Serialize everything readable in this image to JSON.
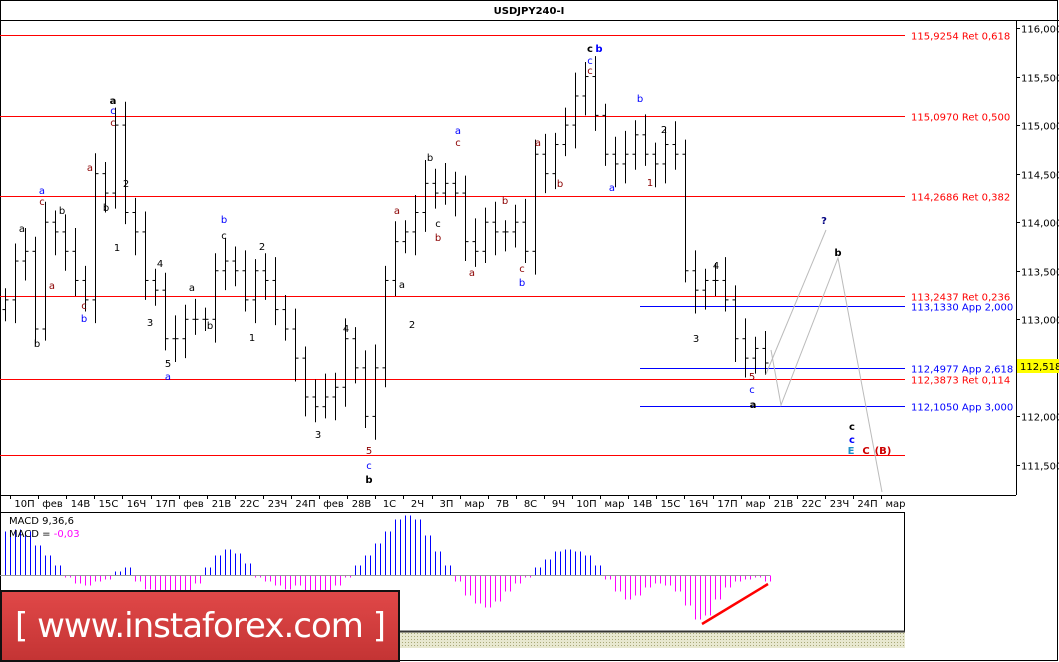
{
  "chart_data": {
    "type": "ohlc",
    "title": "USDJPY240-I",
    "ylim": [
      111.2,
      116.2
    ],
    "y_ticks": [
      "116,000",
      "115,500",
      "115,000",
      "114,500",
      "114,000",
      "113,500",
      "113,000",
      "112,000",
      "111,500"
    ],
    "current_price": "112,518",
    "x_labels": [
      "10П",
      "фев",
      "14В",
      "15С",
      "16Ч",
      "17П",
      "фев",
      "21В",
      "22С",
      "23Ч",
      "24П",
      "фев",
      "28В",
      "1С",
      "2Ч",
      "3П",
      "мар",
      "7В",
      "8С",
      "9Ч",
      "10П",
      "мар",
      "14В",
      "15С",
      "16Ч",
      "17П",
      "мар",
      "21В",
      "22С",
      "23Ч",
      "24П",
      "мар"
    ],
    "price_path": [
      113.2,
      113.6,
      113.7,
      112.9,
      114.0,
      113.9,
      113.7,
      113.4,
      113.2,
      114.5,
      114.3,
      115.0,
      114.1,
      113.9,
      113.4,
      113.3,
      112.8,
      112.8,
      113.0,
      113.0,
      113.0,
      113.5,
      113.6,
      113.5,
      113.2,
      113.5,
      113.4,
      113.1,
      112.9,
      112.6,
      112.2,
      112.1,
      112.2,
      112.3,
      112.8,
      112.5,
      112.0,
      112.5,
      113.4,
      113.8,
      113.9,
      114.1,
      114.4,
      114.3,
      114.4,
      114.3,
      113.8,
      113.7,
      114.0,
      113.9,
      113.9,
      114.0,
      113.7,
      114.7,
      114.5,
      114.8,
      115.0,
      115.3,
      115.5,
      115.1,
      114.7,
      114.6,
      114.7,
      114.9,
      114.7,
      114.6,
      114.8,
      114.7,
      113.5,
      113.3,
      113.4,
      113.4,
      113.2,
      112.8,
      112.6,
      112.7,
      112.55
    ],
    "fib_levels": [
      {
        "price": 115.9254,
        "label": "115,9254 Ret 0,618",
        "color": "#ff0000"
      },
      {
        "price": 115.097,
        "label": "115,0970 Ret 0,500",
        "color": "#ff0000"
      },
      {
        "price": 114.2686,
        "label": "114,2686 Ret 0,382",
        "color": "#ff0000"
      },
      {
        "price": 113.2437,
        "label": "113,2437 Ret 0,236",
        "color": "#ff0000"
      },
      {
        "price": 113.133,
        "label": "113,1330 App 2,000",
        "color": "#0000ff"
      },
      {
        "price": 112.4977,
        "label": "112,4977 App 2,618",
        "color": "#0000ff"
      },
      {
        "price": 112.3873,
        "label": "112,3873 Ret 0,114",
        "color": "#ff0000"
      },
      {
        "price": 112.105,
        "label": "112,1050 App 3,000",
        "color": "#0000ff"
      },
      {
        "price": 111.6,
        "label": "",
        "color": "#ff0000"
      }
    ],
    "wave_labels": [
      {
        "t": "a",
        "c": "#000",
        "b": 1
      },
      {
        "t": "c",
        "c": "#0000ff"
      },
      {
        "t": "c",
        "c": "#8b0000"
      },
      {
        "t": "a",
        "c": "#0000ff"
      },
      {
        "t": "c",
        "c": "#8b0000"
      },
      {
        "t": "b",
        "c": "#000"
      },
      {
        "t": "a",
        "c": "#000"
      },
      {
        "t": "a",
        "c": "#8b0000"
      },
      {
        "t": "c",
        "c": "#8b0000"
      },
      {
        "t": "b",
        "c": "#0000ff"
      },
      {
        "t": "b",
        "c": "#000"
      },
      {
        "t": "2",
        "c": "#000"
      },
      {
        "t": "1",
        "c": "#000"
      },
      {
        "t": "b",
        "c": "#000"
      },
      {
        "t": "a",
        "c": "#8b0000"
      },
      {
        "t": "b",
        "c": "#0000ff"
      },
      {
        "t": "c",
        "c": "#000"
      },
      {
        "t": "2",
        "c": "#000"
      },
      {
        "t": "1",
        "c": "#000"
      },
      {
        "t": "4",
        "c": "#000"
      },
      {
        "t": "3",
        "c": "#000"
      },
      {
        "t": "5",
        "c": "#000"
      },
      {
        "t": "a",
        "c": "#0000ff"
      },
      {
        "t": "a",
        "c": "#000"
      },
      {
        "t": "b",
        "c": "#000"
      },
      {
        "t": "4",
        "c": "#000"
      },
      {
        "t": "3",
        "c": "#000"
      },
      {
        "t": "5",
        "c": "#8b0000"
      },
      {
        "t": "c",
        "c": "#0000ff"
      },
      {
        "t": "b",
        "c": "#000",
        "b": 1
      },
      {
        "t": "2",
        "c": "#000"
      },
      {
        "t": "a",
        "c": "#000"
      },
      {
        "t": "a",
        "c": "#8b0000"
      },
      {
        "t": "b",
        "c": "#000"
      },
      {
        "t": "c",
        "c": "#000"
      },
      {
        "t": "b",
        "c": "#8b0000"
      },
      {
        "t": "a",
        "c": "#0000ff"
      },
      {
        "t": "c",
        "c": "#8b0000"
      },
      {
        "t": "a",
        "c": "#8b0000"
      },
      {
        "t": "b",
        "c": "#8b0000"
      },
      {
        "t": "c",
        "c": "#8b0000"
      },
      {
        "t": "b",
        "c": "#0000ff"
      },
      {
        "t": "a",
        "c": "#8b0000"
      },
      {
        "t": "b",
        "c": "#8b0000"
      },
      {
        "t": "c",
        "c": "#000",
        "b": 1
      },
      {
        "t": "b",
        "c": "#0000ff",
        "b": 1
      },
      {
        "t": "c",
        "c": "#0000ff"
      },
      {
        "t": "c",
        "c": "#8b0000"
      },
      {
        "t": "b",
        "c": "#0000ff"
      },
      {
        "t": "2",
        "c": "#000"
      },
      {
        "t": "a",
        "c": "#0000ff"
      },
      {
        "t": "1",
        "c": "#8b0000"
      },
      {
        "t": "4",
        "c": "#000"
      },
      {
        "t": "3",
        "c": "#000"
      },
      {
        "t": "5",
        "c": "#8b0000"
      },
      {
        "t": "c",
        "c": "#0000ff"
      },
      {
        "t": "a",
        "c": "#000",
        "b": 1
      },
      {
        "t": "?",
        "c": "#000080",
        "b": 1
      },
      {
        "t": "b",
        "c": "#000",
        "b": 1
      },
      {
        "t": "c",
        "c": "#000",
        "b": 1
      },
      {
        "t": "c",
        "c": "#0000ff",
        "b": 1
      },
      {
        "t": "E",
        "c": "#1e90c8",
        "b": 1
      },
      {
        "t": "C",
        "c": "#cc0000",
        "b": 1
      },
      {
        "t": "(B)",
        "c": "#cc0000",
        "b": 1
      }
    ],
    "macd": {
      "label": "MACD 9,36,6",
      "value_prefix": "MACD = ",
      "value": "-0,03",
      "positive_color": "#0000ff",
      "negative_color": "#ff00ff",
      "histogram": [
        0.22,
        0.23,
        0.22,
        0.15,
        0.1,
        0.05,
        -0.01,
        -0.04,
        -0.05,
        -0.03,
        -0.02,
        0.02,
        0.04,
        -0.03,
        -0.07,
        -0.1,
        -0.12,
        -0.11,
        -0.08,
        -0.04,
        0.04,
        0.1,
        0.13,
        0.11,
        0.06,
        -0.01,
        -0.03,
        -0.05,
        -0.07,
        -0.05,
        -0.08,
        -0.1,
        -0.08,
        -0.05,
        -0.01,
        0.05,
        0.1,
        0.16,
        0.22,
        0.28,
        0.3,
        0.28,
        0.2,
        0.12,
        0.05,
        -0.03,
        -0.1,
        -0.14,
        -0.16,
        -0.13,
        -0.08,
        -0.04,
        -0.01,
        0.04,
        0.08,
        0.12,
        0.13,
        0.12,
        0.1,
        0.05,
        -0.02,
        -0.08,
        -0.12,
        -0.1,
        -0.06,
        -0.04,
        -0.05,
        -0.08,
        -0.15,
        -0.22,
        -0.2,
        -0.12,
        -0.06,
        -0.03,
        -0.02,
        -0.01,
        -0.03
      ]
    }
  },
  "logo": {
    "text": "[ www.instaforex.com ]"
  }
}
